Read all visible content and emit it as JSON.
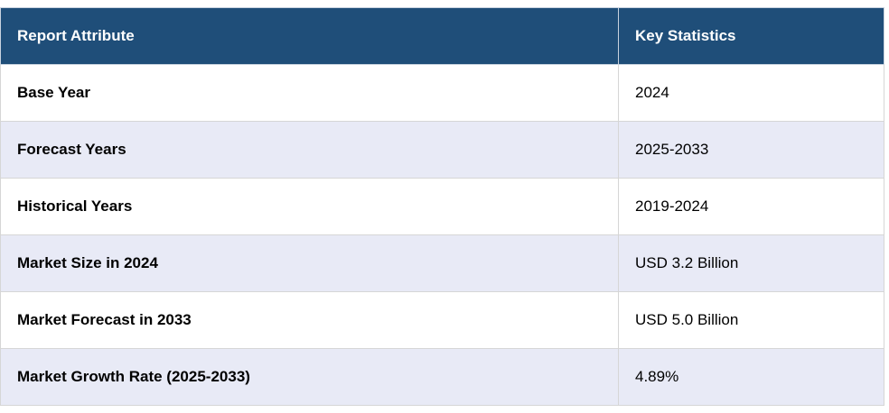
{
  "table": {
    "headers": {
      "attribute": "Report Attribute",
      "statistics": "Key Statistics"
    },
    "rows": [
      {
        "attribute": "Base Year",
        "value": "2024"
      },
      {
        "attribute": "Forecast Years",
        "value": "2025-2033"
      },
      {
        "attribute": "Historical Years",
        "value": "2019-2024"
      },
      {
        "attribute": "Market Size in 2024",
        "value": "USD 3.2 Billion"
      },
      {
        "attribute": "Market Forecast in 2033",
        "value": "USD 5.0 Billion"
      },
      {
        "attribute": "Market Growth Rate (2025-2033)",
        "value": "4.89%"
      }
    ]
  },
  "colors": {
    "header_background": "#1f4e79",
    "header_text": "#ffffff",
    "alt_row_background": "#e8eaf6",
    "border": "#d6d6d6"
  }
}
